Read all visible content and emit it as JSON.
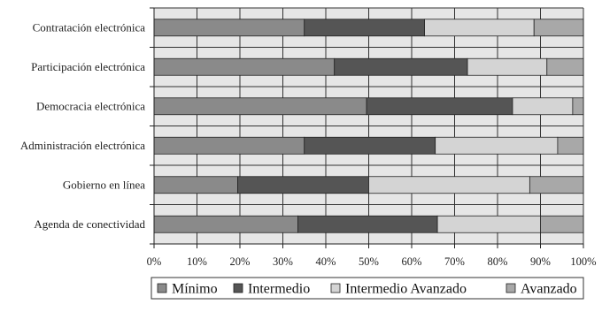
{
  "chart_data": {
    "type": "bar",
    "orientation": "horizontal",
    "stacked": "percent",
    "categories": [
      "Contratación electrónica",
      "Participación electrónica",
      "Democracia electrónica",
      "Administración electrónica",
      "Gobierno en línea",
      "Agenda de conectividad"
    ],
    "series": [
      {
        "name": "Mínimo",
        "color": "#8a8a8a",
        "values": [
          35,
          42,
          49.5,
          35,
          19.5,
          33.5
        ]
      },
      {
        "name": "Intermedio",
        "color": "#555555",
        "values": [
          28,
          31,
          34,
          30.5,
          30.5,
          32.5
        ]
      },
      {
        "name": "Intermedio Avanzado",
        "color": "#d4d4d4",
        "values": [
          25.5,
          18.5,
          14,
          28.5,
          37.5,
          24
        ]
      },
      {
        "name": "Avanzado",
        "color": "#a8a8a8",
        "values": [
          11.5,
          8.5,
          2.5,
          6,
          12.5,
          10
        ]
      }
    ],
    "x_ticks": [
      "0%",
      "10%",
      "20%",
      "30%",
      "40%",
      "50%",
      "60%",
      "70%",
      "80%",
      "90%",
      "100%"
    ],
    "xlim": [
      0,
      100
    ],
    "grid": true,
    "legend": "bottom",
    "plot_background": "#e6e6e6"
  }
}
